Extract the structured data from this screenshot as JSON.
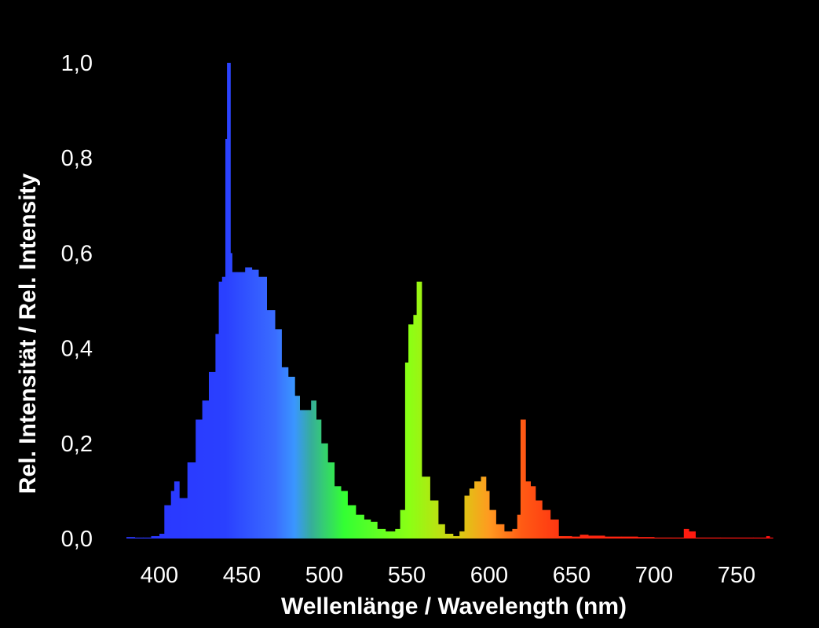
{
  "chart_data": {
    "type": "bar",
    "title": "",
    "xlabel": "Wellenlänge / Wavelength (nm)",
    "ylabel": "Rel. Intensität / Rel. Intensity",
    "xlim": [
      380,
      772
    ],
    "ylim": [
      0,
      1.0
    ],
    "grid": false,
    "background": "#000000",
    "x_ticks": [
      "400",
      "450",
      "500",
      "550",
      "600",
      "650",
      "700",
      "750"
    ],
    "x_tick_values": [
      400,
      450,
      500,
      550,
      600,
      650,
      700,
      750
    ],
    "y_ticks": [
      "0,0",
      "0,2",
      "0,4",
      "0,6",
      "0,8",
      "1,0"
    ],
    "y_tick_values": [
      0,
      0.2,
      0.4,
      0.6,
      0.8,
      1.0
    ],
    "color_stops": [
      {
        "nm": 400,
        "color": "#2a38ff"
      },
      {
        "nm": 440,
        "color": "#2a40ff"
      },
      {
        "nm": 470,
        "color": "#3a6cff"
      },
      {
        "nm": 482,
        "color": "#3a96ff"
      },
      {
        "nm": 492,
        "color": "#36ae9a"
      },
      {
        "nm": 512,
        "color": "#33ff33"
      },
      {
        "nm": 552,
        "color": "#8cff14"
      },
      {
        "nm": 580,
        "color": "#d6d010"
      },
      {
        "nm": 600,
        "color": "#ff9a20"
      },
      {
        "nm": 620,
        "color": "#ff5a14"
      },
      {
        "nm": 650,
        "color": "#ff2a10"
      },
      {
        "nm": 772,
        "color": "#ff1010"
      }
    ],
    "x": [
      380,
      385,
      390,
      395,
      400,
      403,
      407,
      409,
      412,
      417,
      422,
      426,
      430,
      434,
      436,
      438,
      440,
      441,
      443,
      444,
      447,
      452,
      456,
      460,
      465,
      470,
      474,
      478,
      482,
      485,
      490,
      492,
      495,
      498,
      502,
      506,
      510,
      514,
      519,
      524,
      528,
      532,
      537,
      543,
      546,
      549,
      551,
      554,
      556,
      559,
      564,
      569,
      573,
      578,
      582,
      585,
      588,
      591,
      595,
      598,
      600,
      604,
      609,
      614,
      617,
      619,
      622,
      625,
      628,
      632,
      637,
      642,
      650,
      655,
      660,
      670,
      680,
      690,
      700,
      710,
      718,
      721,
      725,
      740,
      760,
      768,
      770
    ],
    "values": [
      0.003,
      0.002,
      0.002,
      0.005,
      0.01,
      0.07,
      0.1,
      0.12,
      0.085,
      0.16,
      0.25,
      0.29,
      0.35,
      0.43,
      0.54,
      0.55,
      0.84,
      1.0,
      0.6,
      0.56,
      0.56,
      0.57,
      0.565,
      0.55,
      0.48,
      0.44,
      0.36,
      0.34,
      0.3,
      0.27,
      0.27,
      0.29,
      0.25,
      0.2,
      0.16,
      0.11,
      0.1,
      0.07,
      0.05,
      0.04,
      0.035,
      0.02,
      0.015,
      0.02,
      0.06,
      0.37,
      0.45,
      0.47,
      0.54,
      0.13,
      0.08,
      0.03,
      0.01,
      0.005,
      0.015,
      0.09,
      0.105,
      0.12,
      0.13,
      0.1,
      0.06,
      0.03,
      0.015,
      0.02,
      0.05,
      0.25,
      0.12,
      0.11,
      0.08,
      0.06,
      0.04,
      0.005,
      0.004,
      0.008,
      0.006,
      0.004,
      0.004,
      0.003,
      0.002,
      0.002,
      0.02,
      0.015,
      0.002,
      0.002,
      0.002,
      0.005,
      0.002
    ]
  }
}
